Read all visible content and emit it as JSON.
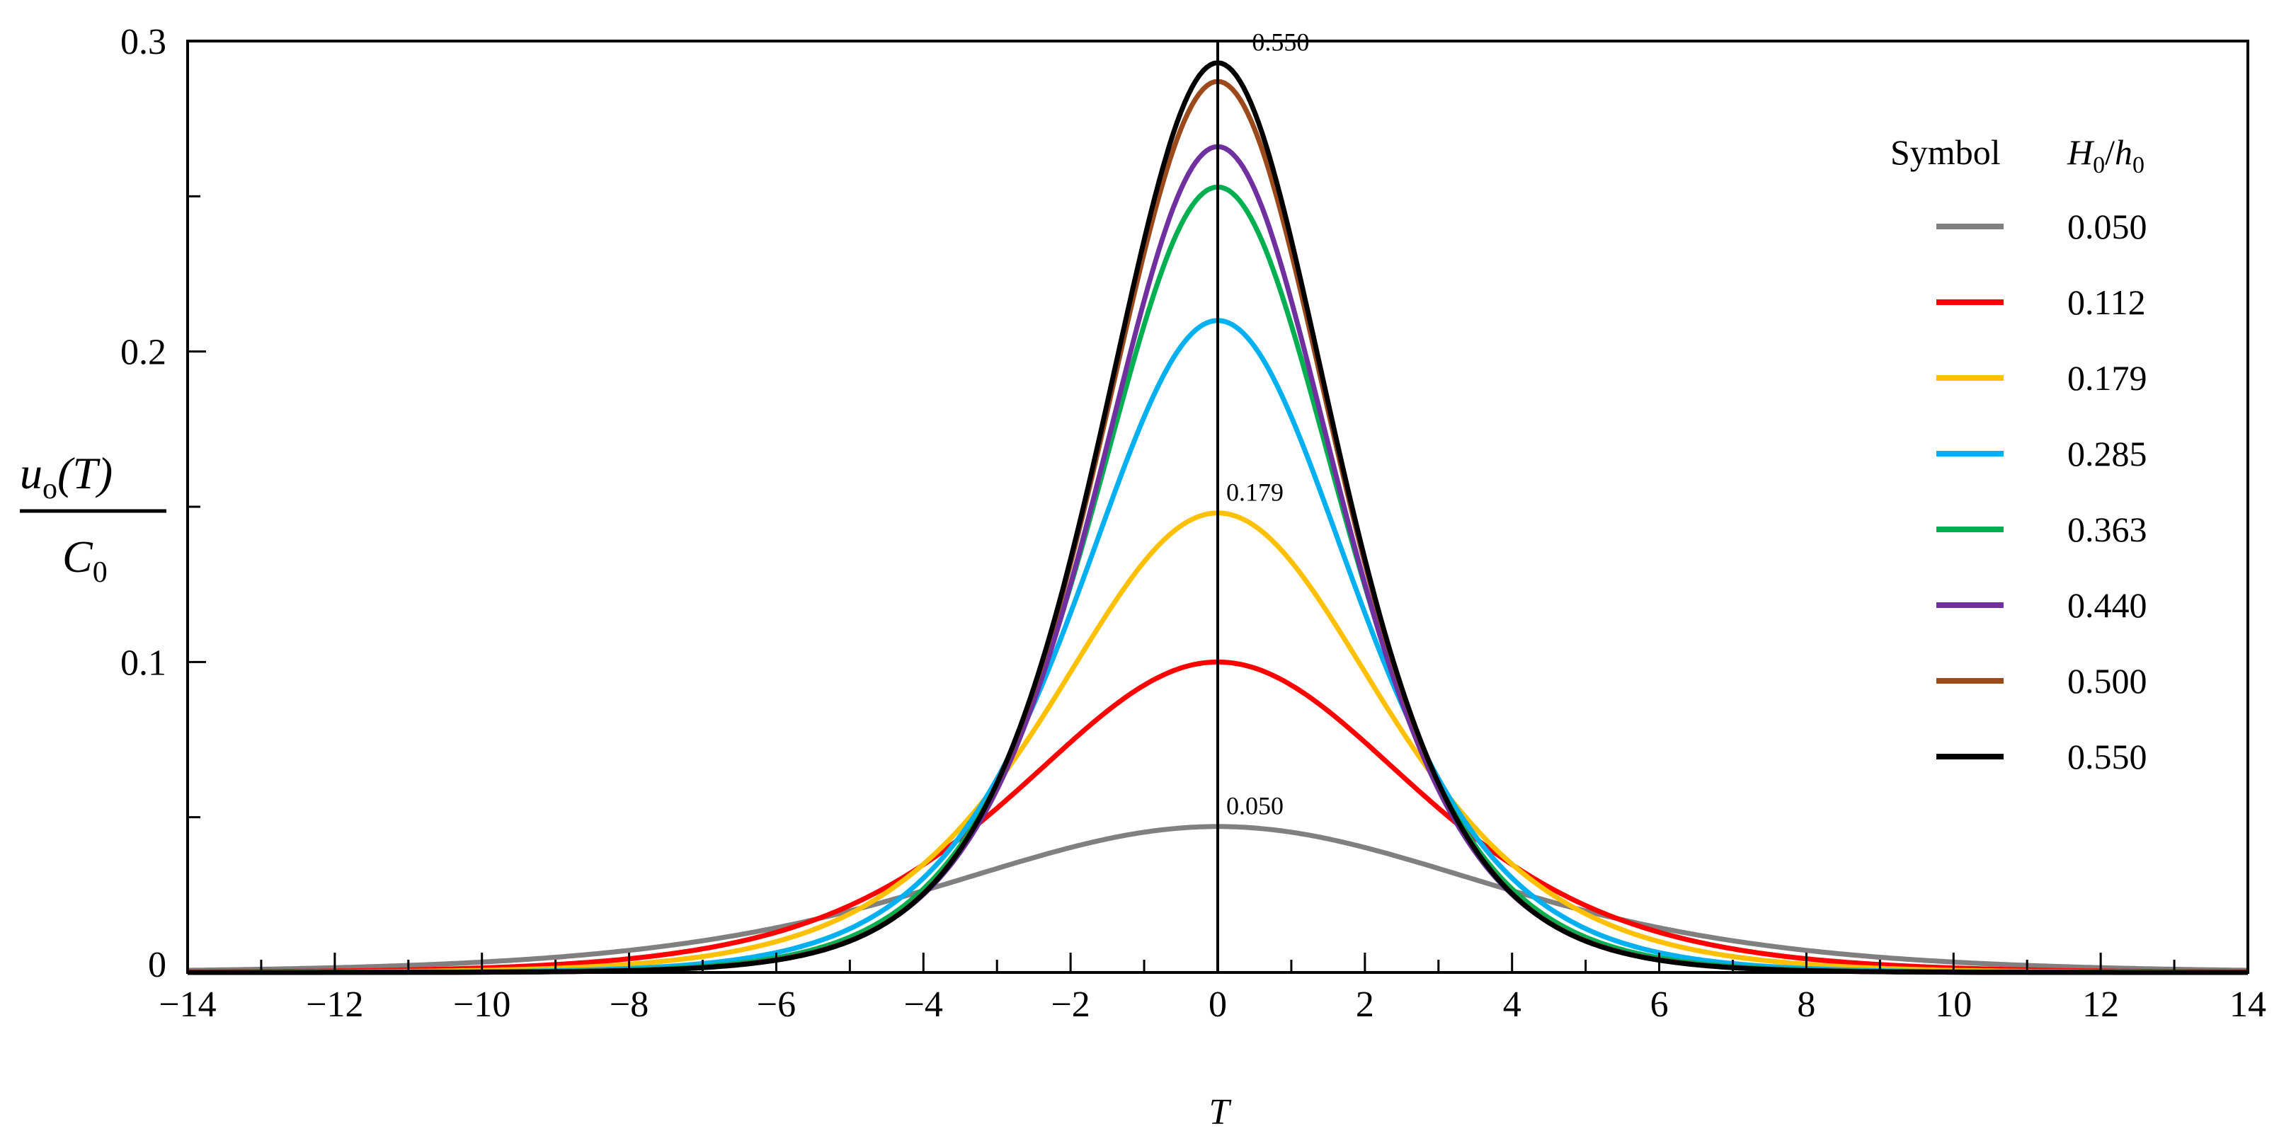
{
  "chart_data": {
    "type": "line",
    "title": "",
    "xlabel": "T",
    "ylabel": {
      "numerator": "u",
      "numerator_sub": "o",
      "numerator_tail": "(T)",
      "denominator": "C",
      "denominator_sub": "0"
    },
    "xlim": [
      -14,
      14
    ],
    "ylim": [
      0,
      0.3
    ],
    "x_ticks": [
      -14,
      -12,
      -10,
      -8,
      -6,
      -4,
      -2,
      0,
      2,
      4,
      6,
      8,
      10,
      12,
      14
    ],
    "x_tick_labels": [
      "−14",
      "−12",
      "−10",
      "−8",
      "−6",
      "−4",
      "−2",
      "0",
      "2",
      "4",
      "6",
      "8",
      "10",
      "12",
      "14"
    ],
    "y_ticks": [
      0,
      0.1,
      0.2,
      0.3
    ],
    "y_tick_labels": [
      "0",
      "0.1",
      "0.2",
      "0.3"
    ],
    "grid": false,
    "legend": {
      "position": "right",
      "header_symbol": "Symbol",
      "header_param": {
        "H": "H",
        "H_sub": "0",
        "slash": "/",
        "h": "h",
        "h_sub": "0"
      }
    },
    "annotations": [
      {
        "text": "0.550",
        "x": 0.35,
        "y": 0.296
      },
      {
        "text": "0.179",
        "x": 0.0,
        "y": 0.151
      },
      {
        "text": "0.050",
        "x": 0.0,
        "y": 0.05
      }
    ],
    "series": [
      {
        "name": "0.050",
        "color": "#808080",
        "peak": 0.047,
        "half_width": 6.6
      },
      {
        "name": "0.112",
        "color": "#ff0000",
        "peak": 0.1,
        "half_width": 4.7
      },
      {
        "name": "0.179",
        "color": "#ffc000",
        "peak": 0.148,
        "half_width": 3.9
      },
      {
        "name": "0.285",
        "color": "#00b0f0",
        "peak": 0.21,
        "half_width": 3.25
      },
      {
        "name": "0.363",
        "color": "#00b050",
        "peak": 0.253,
        "half_width": 2.95
      },
      {
        "name": "0.440",
        "color": "#7030a0",
        "peak": 0.266,
        "half_width": 2.85
      },
      {
        "name": "0.500",
        "color": "#9c4a1b",
        "peak": 0.287,
        "half_width": 2.8
      },
      {
        "name": "0.550",
        "color": "#000000",
        "peak": 0.293,
        "half_width": 2.78
      }
    ]
  }
}
